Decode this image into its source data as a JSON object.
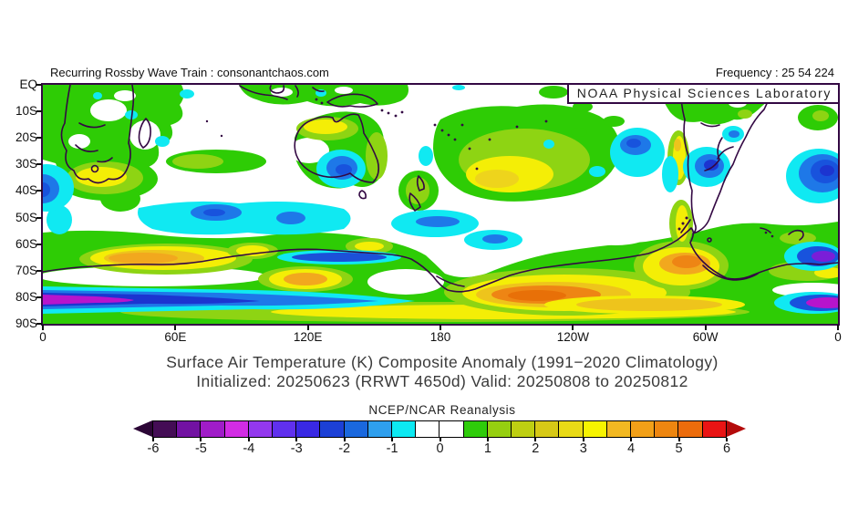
{
  "header": {
    "left_annotation": "Recurring Rossby Wave Train : consonantchaos.com",
    "right_annotation": "Frequency : 25 54 224"
  },
  "map": {
    "watermark": "NOAA Physical Sciences Laboratory",
    "y_axis_labels": [
      "EQ",
      "10S",
      "20S",
      "30S",
      "40S",
      "50S",
      "60S",
      "70S",
      "80S",
      "90S"
    ],
    "x_axis_labels": [
      "0",
      "60E",
      "120E",
      "180",
      "120W",
      "60W",
      "0"
    ]
  },
  "caption": {
    "line1": "Surface Air Temperature (K) Composite Anomaly (1991−2020 Climatology)",
    "line2": "Initialized: 20250623 (RRWT 4650d) Valid: 20250808 to 20250812"
  },
  "colorbar": {
    "title": "NCEP/NCAR Reanalysis",
    "tick_labels": [
      "-6",
      "-5",
      "-4",
      "-3",
      "-2",
      "-1",
      "0",
      "1",
      "2",
      "3",
      "4",
      "5",
      "6"
    ],
    "left_arrow_color": "#2c0636",
    "right_arrow_color": "#b40b0b",
    "cell_colors": [
      "#440d55",
      "#7212a2",
      "#a01cc8",
      "#d22ce4",
      "#9338ee",
      "#6030ee",
      "#3928e4",
      "#1c40d6",
      "#1a68de",
      "#2e9fee",
      "#0de9f2",
      "#ffffff",
      "#ffffff",
      "#2ecc0a",
      "#96cf10",
      "#becf12",
      "#d7c916",
      "#e9da16",
      "#f7f400",
      "#f2b822",
      "#f2a018",
      "#ee8610",
      "#ec6c0c",
      "#e91414"
    ]
  }
}
